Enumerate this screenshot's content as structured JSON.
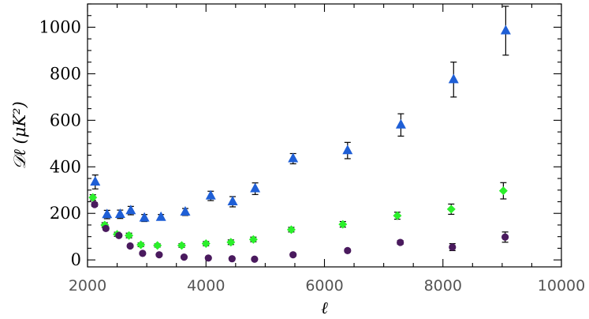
{
  "chart_data": {
    "type": "scatter",
    "xlabel": "ℓ",
    "ylabel": "𝒟ℓ (μK²)",
    "xlim": [
      2000,
      10000
    ],
    "ylim": [
      -30,
      1100
    ],
    "xticks": [
      2000,
      4000,
      6000,
      8000,
      10000
    ],
    "yticks": [
      0,
      200,
      400,
      600,
      800,
      1000
    ],
    "xtick_labels": [
      "2000",
      "4000",
      "6000",
      "8000",
      "10000"
    ],
    "ytick_labels": [
      "0",
      "200",
      "400",
      "600",
      "800",
      "1000"
    ],
    "grid": false,
    "series": [
      {
        "marker": "triangle",
        "color": "#1f5fd6",
        "points": [
          {
            "x": 2130,
            "y": 335,
            "err": 30
          },
          {
            "x": 2330,
            "y": 195,
            "err": 18
          },
          {
            "x": 2550,
            "y": 196,
            "err": 18
          },
          {
            "x": 2730,
            "y": 212,
            "err": 18
          },
          {
            "x": 2960,
            "y": 180,
            "err": 15
          },
          {
            "x": 3240,
            "y": 183,
            "err": 12
          },
          {
            "x": 3650,
            "y": 206,
            "err": 15
          },
          {
            "x": 4080,
            "y": 275,
            "err": 20
          },
          {
            "x": 4450,
            "y": 250,
            "err": 22
          },
          {
            "x": 4830,
            "y": 306,
            "err": 25
          },
          {
            "x": 5470,
            "y": 435,
            "err": 22
          },
          {
            "x": 6390,
            "y": 470,
            "err": 35
          },
          {
            "x": 7290,
            "y": 580,
            "err": 48
          },
          {
            "x": 8180,
            "y": 775,
            "err": 75
          },
          {
            "x": 9060,
            "y": 985,
            "err": 105
          }
        ]
      },
      {
        "marker": "diamond",
        "color": "#2bef2b",
        "points": [
          {
            "x": 2090,
            "y": 268,
            "err": 12
          },
          {
            "x": 2290,
            "y": 150,
            "err": 10
          },
          {
            "x": 2500,
            "y": 110,
            "err": 9
          },
          {
            "x": 2700,
            "y": 105,
            "err": 10
          },
          {
            "x": 2900,
            "y": 65,
            "err": 8
          },
          {
            "x": 3180,
            "y": 62,
            "err": 7
          },
          {
            "x": 3590,
            "y": 62,
            "err": 8
          },
          {
            "x": 4000,
            "y": 70,
            "err": 9
          },
          {
            "x": 4420,
            "y": 76,
            "err": 10
          },
          {
            "x": 4800,
            "y": 88,
            "err": 10
          },
          {
            "x": 5440,
            "y": 130,
            "err": 10
          },
          {
            "x": 6310,
            "y": 153,
            "err": 12
          },
          {
            "x": 7230,
            "y": 190,
            "err": 15
          },
          {
            "x": 8140,
            "y": 218,
            "err": 22
          },
          {
            "x": 9020,
            "y": 297,
            "err": 35
          }
        ]
      },
      {
        "marker": "circle",
        "color": "#4a1a5e",
        "points": [
          {
            "x": 2120,
            "y": 238,
            "err": 8
          },
          {
            "x": 2310,
            "y": 135,
            "err": 7
          },
          {
            "x": 2530,
            "y": 105,
            "err": 6
          },
          {
            "x": 2720,
            "y": 60,
            "err": 5
          },
          {
            "x": 2930,
            "y": 28,
            "err": 5
          },
          {
            "x": 3210,
            "y": 22,
            "err": 4
          },
          {
            "x": 3630,
            "y": 12,
            "err": 4
          },
          {
            "x": 4040,
            "y": 8,
            "err": 4
          },
          {
            "x": 4440,
            "y": 5,
            "err": 4
          },
          {
            "x": 4820,
            "y": 3,
            "err": 4
          },
          {
            "x": 5470,
            "y": 22,
            "err": 5
          },
          {
            "x": 6390,
            "y": 40,
            "err": 6
          },
          {
            "x": 7280,
            "y": 75,
            "err": 8
          },
          {
            "x": 8160,
            "y": 55,
            "err": 15
          },
          {
            "x": 9050,
            "y": 98,
            "err": 22
          }
        ]
      }
    ]
  }
}
